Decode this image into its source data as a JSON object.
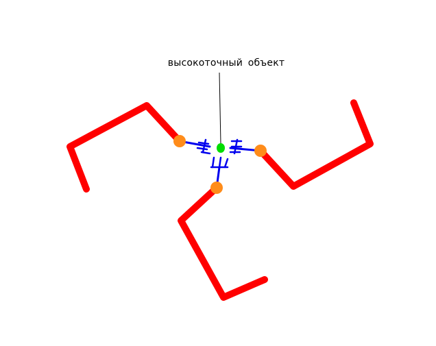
{
  "callout": {
    "label": "высокоточный объект"
  },
  "colors": {
    "line": "#ff0000",
    "connector": "#0000ee",
    "endpoint": "#ff8c1a",
    "target": "#00dd00",
    "leader": "#000000",
    "background": "#ffffff"
  },
  "symbols": {
    "tick_marks": "ш-shaped-blue-glyph",
    "count": 3
  }
}
